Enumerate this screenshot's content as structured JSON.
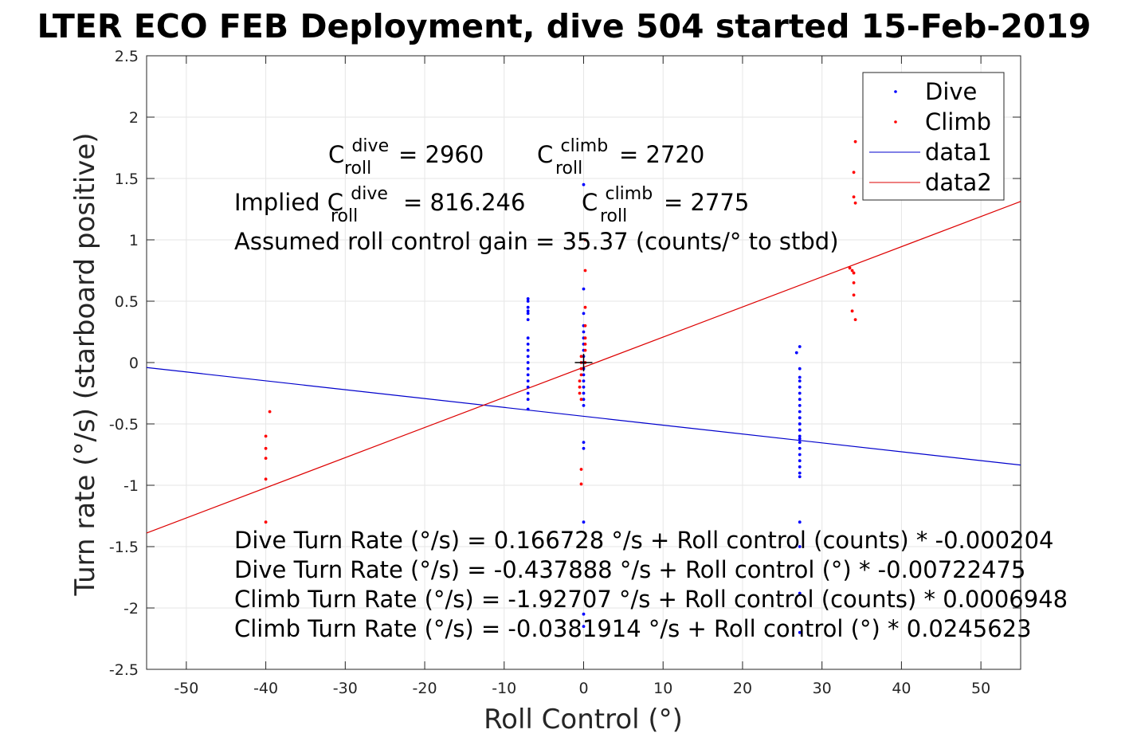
{
  "chart_data": {
    "type": "scatter",
    "title": "LTER ECO FEB Deployment, dive 504 started 15-Feb-2019",
    "xlabel": "Roll Control (°)",
    "ylabel": "Turn rate (°/s) (starboard positive)",
    "xlim": [
      -55,
      55
    ],
    "ylim": [
      -2.5,
      2.5
    ],
    "xticks": [
      -50,
      -40,
      -30,
      -20,
      -10,
      0,
      10,
      20,
      30,
      40,
      50
    ],
    "yticks": [
      2.5,
      2,
      1.5,
      1,
      0.5,
      0,
      -0.5,
      -1,
      -1.5,
      -2,
      -2.5
    ],
    "grid": true,
    "legend_position": "top-right",
    "colors": {
      "dive": "#0000ff",
      "climb": "#ff0000",
      "data1": "#0000cc",
      "data2": "#dd0000",
      "center_mark": "#000000"
    },
    "series": [
      {
        "name": "Dive",
        "kind": "points",
        "x": [
          -7,
          -7,
          -7,
          -7,
          -7,
          -7,
          -7,
          -7,
          -7,
          -7,
          -7,
          -7,
          -7,
          -7,
          -7,
          -7,
          -7,
          -7,
          0,
          0,
          0,
          0,
          0,
          0,
          0,
          0,
          0,
          0,
          0,
          0,
          0,
          0,
          0,
          0,
          0,
          0,
          0,
          0,
          0,
          0,
          26.8,
          27.2,
          27.2,
          27.2,
          27.2,
          27.2,
          27.2,
          27.2,
          27.2,
          27.2,
          27.2,
          27.2,
          27.2,
          27.2,
          27.2,
          27.2,
          27.2,
          27.2,
          27.2,
          27.2,
          27.2,
          27.2,
          27.2,
          27.2,
          27.2,
          27.2,
          27.2,
          27.2,
          27.2
        ],
        "y": [
          0.52,
          0.5,
          0.45,
          0.42,
          0.4,
          0.35,
          0.2,
          0.15,
          0.1,
          0.05,
          0.0,
          -0.05,
          -0.1,
          -0.15,
          -0.2,
          -0.25,
          -0.3,
          -0.38,
          1.45,
          0.6,
          0.4,
          0.3,
          0.25,
          0.2,
          0.15,
          0.1,
          0.05,
          0.0,
          -0.05,
          -0.1,
          -0.15,
          -0.2,
          -0.25,
          -0.35,
          -0.65,
          -0.7,
          -1.3,
          -2.05,
          -2.15,
          -0.3,
          0.08,
          0.13,
          -0.12,
          -0.15,
          -0.2,
          -0.25,
          -0.3,
          -0.35,
          -0.4,
          -0.45,
          -0.5,
          -0.55,
          -0.6,
          -0.65,
          -0.7,
          -0.75,
          -0.8,
          -0.85,
          -0.9,
          -0.93,
          -0.05,
          -0.5,
          -0.45,
          -0.55,
          -0.62,
          -1.3,
          -1.5,
          -1.88,
          -2.2
        ]
      },
      {
        "name": "Climb",
        "kind": "points",
        "x": [
          -40,
          -40,
          -40,
          -40,
          -40,
          -39.5,
          -0.5,
          -0.5,
          -0.5,
          -0.3,
          -0.3,
          -0.3,
          -0.3,
          -0.3,
          -0.3,
          -0.3,
          0.2,
          0.2,
          0.2,
          0.2,
          0.2,
          0.2,
          0.2,
          0.2,
          33.5,
          33.8,
          33.8,
          34,
          34,
          34,
          34,
          34,
          34.2,
          34.2,
          34.2
        ],
        "y": [
          -0.6,
          -0.7,
          -0.78,
          -0.95,
          -1.3,
          -0.4,
          -0.15,
          -0.2,
          -0.25,
          0.05,
          0.0,
          -0.05,
          -0.1,
          -0.3,
          -0.87,
          -0.99,
          1.0,
          0.75,
          0.45,
          0.3,
          0.2,
          0.15,
          0.1,
          0.0,
          0.77,
          0.75,
          0.42,
          1.35,
          0.73,
          0.65,
          0.55,
          1.55,
          1.8,
          1.3,
          0.35
        ]
      },
      {
        "name": "data1",
        "kind": "line",
        "x": [
          -55,
          55
        ],
        "y": [
          -0.0405,
          -0.8352
        ]
      },
      {
        "name": "data2",
        "kind": "line",
        "x": [
          -55,
          55
        ],
        "y": [
          -1.3891,
          1.3127
        ]
      }
    ],
    "center_marker": {
      "x": 0,
      "y": 0
    },
    "annotations": {
      "c_dive_prefix": "C",
      "c_dive_sup": "dive",
      "c_dive_sub": "roll",
      "c_dive_value": "= 2960",
      "c_climb_prefix": "C",
      "c_climb_sup": "climb",
      "c_climb_sub": "roll",
      "c_climb_value": "= 2720",
      "implied_prefix": "Implied C",
      "implied_sup": "dive",
      "implied_sub": "roll",
      "implied_value": "= 816.246",
      "implied_climb_prefix": "C",
      "implied_climb_sup": "climb",
      "implied_climb_sub": "roll",
      "implied_climb_value": "= 2775",
      "gain_text": "Assumed roll control gain = 35.37 (counts/° to stbd)",
      "fit1": "Dive Turn Rate (°/s) = 0.166728 °/s + Roll control (counts) * -0.000204",
      "fit2": "Dive Turn Rate (°/s) = -0.437888 °/s + Roll control (°) * -0.00722475",
      "fit3": "Climb Turn Rate (°/s) = -1.92707 °/s + Roll control (counts) * 0.0006948",
      "fit4": "Climb Turn Rate (°/s) = -0.0381914 °/s + Roll control (°) * 0.0245623"
    }
  }
}
